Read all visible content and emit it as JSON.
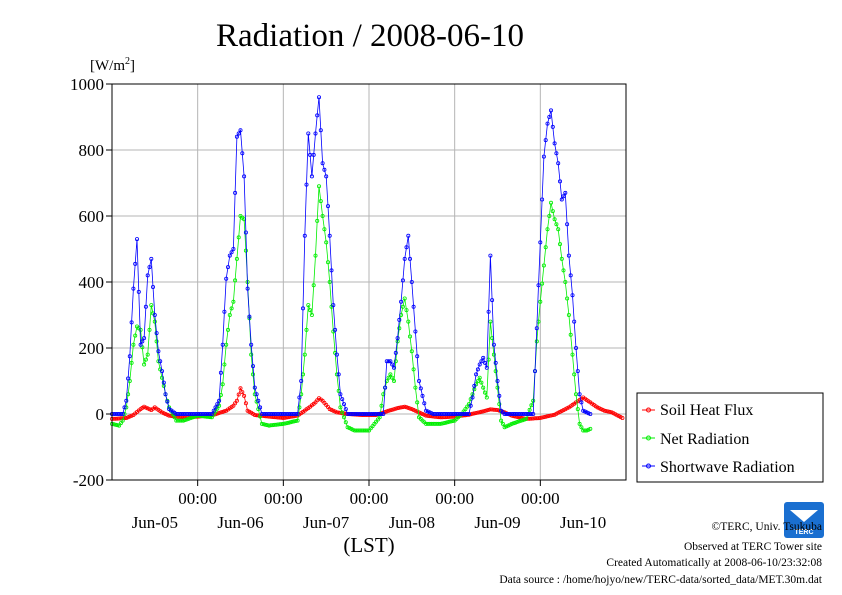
{
  "chart_data": {
    "type": "line",
    "title": "Radiation / 2008-06-10",
    "ylabel": "[W/m",
    "ylabel_sup": "2",
    "ylabel_close": "]",
    "xlabel": "(LST)",
    "ylim": [
      -200,
      1000
    ],
    "yticks": [
      "1000",
      "800",
      "600",
      "400",
      "200",
      "0",
      "-200"
    ],
    "ytick_values": [
      1000,
      800,
      600,
      400,
      200,
      0,
      -200
    ],
    "x_axis_hours": [
      0,
      144
    ],
    "midnight_ticks": [
      {
        "time": "00:00",
        "hour": 24
      },
      {
        "time": "00:00",
        "hour": 48
      },
      {
        "time": "00:00",
        "hour": 72
      },
      {
        "time": "00:00",
        "hour": 96
      },
      {
        "time": "00:00",
        "hour": 120
      }
    ],
    "day_labels": [
      {
        "label": "Jun-05",
        "hour": 12
      },
      {
        "label": "Jun-06",
        "hour": 36
      },
      {
        "label": "Jun-07",
        "hour": 60
      },
      {
        "label": "Jun-08",
        "hour": 84
      },
      {
        "label": "Jun-09",
        "hour": 108
      },
      {
        "label": "Jun-10",
        "hour": 132
      }
    ],
    "grid": true,
    "legend_placement": "right",
    "series": [
      {
        "name": "Soil Heat Flux",
        "color": "#ff0000",
        "points": [
          [
            0,
            -15
          ],
          [
            4,
            -12
          ],
          [
            6,
            -3
          ],
          [
            8,
            15
          ],
          [
            9,
            22
          ],
          [
            11,
            12
          ],
          [
            12,
            20
          ],
          [
            14,
            5
          ],
          [
            16,
            -5
          ],
          [
            20,
            -10
          ],
          [
            24,
            -8
          ],
          [
            28,
            -4
          ],
          [
            32,
            10
          ],
          [
            34,
            25
          ],
          [
            35,
            40
          ],
          [
            36,
            78
          ],
          [
            37,
            55
          ],
          [
            38,
            10
          ],
          [
            40,
            -3
          ],
          [
            44,
            -8
          ],
          [
            48,
            -12
          ],
          [
            52,
            -5
          ],
          [
            55,
            18
          ],
          [
            57,
            35
          ],
          [
            58,
            48
          ],
          [
            59,
            40
          ],
          [
            61,
            15
          ],
          [
            63,
            5
          ],
          [
            66,
            0
          ],
          [
            70,
            -3
          ],
          [
            74,
            -3
          ],
          [
            77,
            8
          ],
          [
            80,
            18
          ],
          [
            82,
            22
          ],
          [
            84,
            15
          ],
          [
            86,
            5
          ],
          [
            88,
            -5
          ],
          [
            92,
            -10
          ],
          [
            96,
            -8
          ],
          [
            100,
            -2
          ],
          [
            104,
            8
          ],
          [
            106,
            14
          ],
          [
            108,
            12
          ],
          [
            110,
            5
          ],
          [
            112,
            -5
          ],
          [
            116,
            -15
          ],
          [
            120,
            -12
          ],
          [
            124,
            -2
          ],
          [
            128,
            20
          ],
          [
            130,
            35
          ],
          [
            132,
            50
          ],
          [
            134,
            35
          ],
          [
            136,
            20
          ],
          [
            138,
            10
          ],
          [
            140,
            5
          ],
          [
            143,
            -12
          ]
        ]
      },
      {
        "name": "Net Radiation",
        "color": "#00ee00",
        "points": [
          [
            0,
            -30
          ],
          [
            2,
            -35
          ],
          [
            3,
            -20
          ],
          [
            4,
            20
          ],
          [
            5,
            100
          ],
          [
            6,
            210
          ],
          [
            7,
            265
          ],
          [
            8,
            255
          ],
          [
            9,
            150
          ],
          [
            10,
            180
          ],
          [
            11,
            330
          ],
          [
            12,
            280
          ],
          [
            13,
            160
          ],
          [
            14,
            110
          ],
          [
            15,
            60
          ],
          [
            16,
            20
          ],
          [
            18,
            -20
          ],
          [
            20,
            -20
          ],
          [
            24,
            -5
          ],
          [
            28,
            -10
          ],
          [
            30,
            25
          ],
          [
            31,
            90
          ],
          [
            32,
            210
          ],
          [
            33,
            300
          ],
          [
            34,
            340
          ],
          [
            35,
            470
          ],
          [
            36,
            600
          ],
          [
            37,
            590
          ],
          [
            38,
            400
          ],
          [
            39,
            180
          ],
          [
            40,
            60
          ],
          [
            42,
            -30
          ],
          [
            44,
            -35
          ],
          [
            48,
            -30
          ],
          [
            52,
            -20
          ],
          [
            53,
            60
          ],
          [
            54,
            180
          ],
          [
            55,
            330
          ],
          [
            56,
            300
          ],
          [
            57,
            480
          ],
          [
            58,
            690
          ],
          [
            59,
            600
          ],
          [
            60,
            520
          ],
          [
            61,
            400
          ],
          [
            62,
            250
          ],
          [
            63,
            120
          ],
          [
            64,
            20
          ],
          [
            66,
            -40
          ],
          [
            68,
            -50
          ],
          [
            72,
            -50
          ],
          [
            75,
            -10
          ],
          [
            76,
            60
          ],
          [
            77,
            100
          ],
          [
            78,
            120
          ],
          [
            79,
            100
          ],
          [
            80,
            220
          ],
          [
            81,
            300
          ],
          [
            82,
            350
          ],
          [
            83,
            280
          ],
          [
            84,
            190
          ],
          [
            85,
            80
          ],
          [
            86,
            -10
          ],
          [
            88,
            -30
          ],
          [
            92,
            -30
          ],
          [
            96,
            -20
          ],
          [
            98,
            0
          ],
          [
            100,
            30
          ],
          [
            101,
            60
          ],
          [
            102,
            90
          ],
          [
            103,
            110
          ],
          [
            104,
            80
          ],
          [
            105,
            50
          ],
          [
            106,
            280
          ],
          [
            107,
            180
          ],
          [
            108,
            80
          ],
          [
            109,
            -20
          ],
          [
            110,
            -40
          ],
          [
            112,
            -30
          ],
          [
            116,
            -15
          ],
          [
            118,
            40
          ],
          [
            119,
            220
          ],
          [
            120,
            340
          ],
          [
            121,
            450
          ],
          [
            122,
            560
          ],
          [
            123,
            640
          ],
          [
            124,
            590
          ],
          [
            125,
            560
          ],
          [
            126,
            470
          ],
          [
            127,
            400
          ],
          [
            128,
            300
          ],
          [
            129,
            180
          ],
          [
            130,
            60
          ],
          [
            131,
            -30
          ],
          [
            132,
            -50
          ],
          [
            133,
            -50
          ],
          [
            134,
            -45
          ]
        ]
      },
      {
        "name": "Shortwave Radiation",
        "color": "#0000ff",
        "points": [
          [
            0,
            0
          ],
          [
            3,
            0
          ],
          [
            4,
            40
          ],
          [
            5,
            175
          ],
          [
            6,
            380
          ],
          [
            7,
            530
          ],
          [
            8,
            210
          ],
          [
            9,
            230
          ],
          [
            10,
            420
          ],
          [
            11,
            470
          ],
          [
            12,
            300
          ],
          [
            13,
            190
          ],
          [
            14,
            130
          ],
          [
            15,
            60
          ],
          [
            16,
            15
          ],
          [
            18,
            0
          ],
          [
            28,
            0
          ],
          [
            30,
            40
          ],
          [
            31,
            210
          ],
          [
            32,
            410
          ],
          [
            33,
            480
          ],
          [
            34,
            500
          ],
          [
            35,
            840
          ],
          [
            36,
            860
          ],
          [
            37,
            720
          ],
          [
            38,
            380
          ],
          [
            39,
            210
          ],
          [
            40,
            80
          ],
          [
            42,
            0
          ],
          [
            52,
            0
          ],
          [
            53,
            100
          ],
          [
            54,
            540
          ],
          [
            55,
            850
          ],
          [
            56,
            720
          ],
          [
            57,
            850
          ],
          [
            58,
            960
          ],
          [
            59,
            760
          ],
          [
            60,
            720
          ],
          [
            61,
            540
          ],
          [
            62,
            330
          ],
          [
            63,
            180
          ],
          [
            64,
            60
          ],
          [
            66,
            0
          ],
          [
            76,
            0
          ],
          [
            77,
            160
          ],
          [
            78,
            160
          ],
          [
            79,
            140
          ],
          [
            80,
            230
          ],
          [
            81,
            340
          ],
          [
            82,
            470
          ],
          [
            83,
            540
          ],
          [
            84,
            400
          ],
          [
            85,
            250
          ],
          [
            86,
            100
          ],
          [
            88,
            10
          ],
          [
            90,
            0
          ],
          [
            100,
            0
          ],
          [
            101,
            50
          ],
          [
            102,
            120
          ],
          [
            103,
            150
          ],
          [
            104,
            170
          ],
          [
            105,
            140
          ],
          [
            106,
            480
          ],
          [
            107,
            210
          ],
          [
            108,
            100
          ],
          [
            109,
            10
          ],
          [
            110,
            0
          ],
          [
            118,
            0
          ],
          [
            119,
            260
          ],
          [
            120,
            520
          ],
          [
            121,
            780
          ],
          [
            122,
            880
          ],
          [
            123,
            920
          ],
          [
            124,
            820
          ],
          [
            125,
            760
          ],
          [
            126,
            650
          ],
          [
            127,
            670
          ],
          [
            128,
            480
          ],
          [
            129,
            360
          ],
          [
            130,
            200
          ],
          [
            131,
            60
          ],
          [
            132,
            10
          ],
          [
            134,
            0
          ]
        ]
      }
    ]
  },
  "footer": {
    "copyright": "©TERC, Univ. Tsukuba",
    "observed": "Observed at TERC Tower site",
    "created": "Created Automatically at 2008-06-10/23:32:08",
    "source": "Data source : /home/hojyo/new/TERC-data/sorted_data/MET.30m.dat"
  },
  "logo": {
    "text": "TERC",
    "color": "#1a6fd0"
  }
}
